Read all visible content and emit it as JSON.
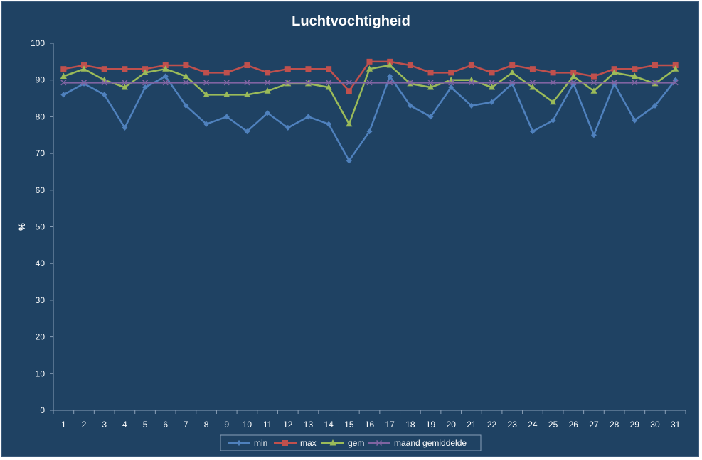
{
  "chart_data": {
    "type": "line",
    "title": "Luchtvochtigheid",
    "xlabel": "",
    "ylabel": "%",
    "ylim": [
      0,
      100
    ],
    "yticks": [
      0,
      10,
      20,
      30,
      40,
      50,
      60,
      70,
      80,
      90,
      100
    ],
    "categories": [
      "1",
      "2",
      "3",
      "4",
      "5",
      "6",
      "7",
      "8",
      "9",
      "10",
      "11",
      "12",
      "13",
      "14",
      "15",
      "16",
      "17",
      "18",
      "19",
      "20",
      "21",
      "22",
      "23",
      "24",
      "25",
      "26",
      "27",
      "28",
      "29",
      "30",
      "31"
    ],
    "grid": false,
    "legend_position": "bottom",
    "series": [
      {
        "name": "min",
        "color": "#4f81bd",
        "marker": "diamond",
        "values": [
          86,
          89,
          86,
          77,
          88,
          91,
          83,
          78,
          80,
          76,
          81,
          77,
          80,
          78,
          68,
          76,
          91,
          83,
          80,
          88,
          83,
          84,
          89,
          76,
          79,
          89,
          75,
          89,
          79,
          83,
          90
        ]
      },
      {
        "name": "max",
        "color": "#c0504d",
        "marker": "square",
        "values": [
          93,
          94,
          93,
          93,
          93,
          94,
          94,
          92,
          92,
          94,
          92,
          93,
          93,
          93,
          87,
          95,
          95,
          94,
          92,
          92,
          94,
          92,
          94,
          93,
          92,
          92,
          91,
          93,
          93,
          94,
          94
        ]
      },
      {
        "name": "gem",
        "color": "#9bbb59",
        "marker": "triangle",
        "values": [
          91,
          93,
          90,
          88,
          92,
          93,
          91,
          86,
          86,
          86,
          87,
          89,
          89,
          88,
          78,
          93,
          94,
          89,
          88,
          90,
          90,
          88,
          92,
          88,
          84,
          91,
          87,
          92,
          91,
          89,
          93
        ]
      },
      {
        "name": "maand gemiddelde",
        "color": "#8064a2",
        "marker": "x",
        "values": [
          89.3,
          89.3,
          89.3,
          89.3,
          89.3,
          89.3,
          89.3,
          89.3,
          89.3,
          89.3,
          89.3,
          89.3,
          89.3,
          89.3,
          89.3,
          89.3,
          89.3,
          89.3,
          89.3,
          89.3,
          89.3,
          89.3,
          89.3,
          89.3,
          89.3,
          89.3,
          89.3,
          89.3,
          89.3,
          89.3,
          89.3
        ]
      }
    ]
  }
}
